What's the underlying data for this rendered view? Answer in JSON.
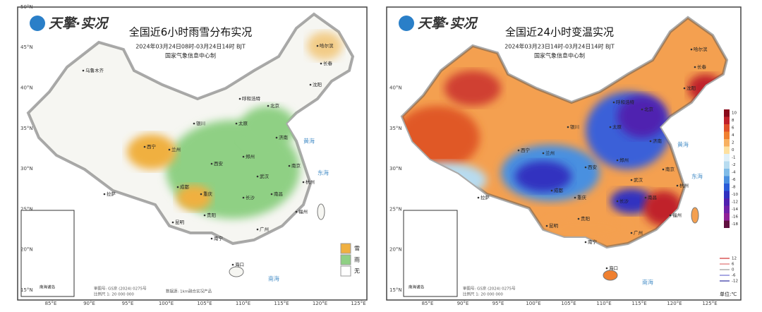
{
  "panels": [
    {
      "logo": "天擎·实况",
      "title": "全国近6小时雨雪分布实况",
      "subtitle": "2024年03月24日08时-03月24日14时 BJT",
      "producer": "国家气象信息中心制",
      "lat_labels": [
        "50°N",
        "45°N",
        "40°N",
        "35°N",
        "30°N",
        "25°N",
        "20°N",
        "15°N"
      ],
      "lon_labels": [
        "85°E",
        "90°E",
        "95°E",
        "100°E",
        "105°E",
        "110°E",
        "115°E",
        "120°E",
        "125°E"
      ],
      "legend": [
        {
          "label": "雪",
          "color": "#f0b040"
        },
        {
          "label": "雨",
          "color": "#8fd084"
        },
        {
          "label": "无",
          "color": "#ffffff"
        }
      ],
      "cities": [
        "乌鲁木齐",
        "拉萨",
        "西宁",
        "兰州",
        "成都",
        "重庆",
        "贵阳",
        "昆明",
        "南宁",
        "西安",
        "银川",
        "太原",
        "呼和浩特",
        "北京",
        "济南",
        "郑州",
        "武汉",
        "长沙",
        "南昌",
        "南京",
        "杭州",
        "福州",
        "广州",
        "海口",
        "哈尔滨",
        "长春",
        "沈阳"
      ],
      "seas": [
        "黄海",
        "东海",
        "南海"
      ],
      "inset_label": "南海诸岛",
      "footer": [
        "审图号: GS京 (2024) 0275号",
        "比例尺 1: 20 000 000"
      ],
      "source": "数据源: 1km融合实况产品"
    },
    {
      "logo": "天擎·实况",
      "title": "全国近24小时变温实况",
      "subtitle": "2024年03月23日14时-03月24日14时 BJT",
      "producer": "国家气象信息中心制",
      "lat_labels": [
        "40°N",
        "35°N",
        "30°N",
        "25°N",
        "20°N",
        "15°N"
      ],
      "lon_labels": [
        "85°E",
        "90°E",
        "95°E",
        "100°E",
        "105°E",
        "110°E",
        "115°E",
        "120°E",
        "125°E"
      ],
      "legend": [
        {
          "value": 10,
          "color": "#8a0a1a"
        },
        {
          "value": 8,
          "color": "#c0202a"
        },
        {
          "value": 6,
          "color": "#e0502a"
        },
        {
          "value": 4,
          "color": "#f08030"
        },
        {
          "value": 2,
          "color": "#f8b060"
        },
        {
          "value": 0,
          "color": "#fde0a0"
        },
        {
          "value": -1,
          "color": "#e0f0f8"
        },
        {
          "value": -2,
          "color": "#b8dcf0"
        },
        {
          "value": -4,
          "color": "#80bce8"
        },
        {
          "value": -6,
          "color": "#4a90e0"
        },
        {
          "value": -8,
          "color": "#2a5cd8"
        },
        {
          "value": -10,
          "color": "#3030c0"
        },
        {
          "value": -12,
          "color": "#5020b0"
        },
        {
          "value": -14,
          "color": "#7020a8"
        },
        {
          "value": -16,
          "color": "#902098"
        },
        {
          "value": -18,
          "color": "#601040"
        }
      ],
      "line_legend": [
        {
          "value": 12,
          "color": "#d03030"
        },
        {
          "value": 6,
          "color": "#e07070"
        },
        {
          "value": 0,
          "color": "#999999"
        },
        {
          "value": -6,
          "color": "#7070d0"
        },
        {
          "value": -12,
          "color": "#3030a0"
        }
      ],
      "unit": "单位:℃",
      "cities": [
        "拉萨",
        "西宁",
        "兰州",
        "成都",
        "重庆",
        "贵阳",
        "昆明",
        "南宁",
        "西安",
        "银川",
        "太原",
        "呼和浩特",
        "北京",
        "济南",
        "郑州",
        "武汉",
        "长沙",
        "南昌",
        "南京",
        "杭州",
        "福州",
        "广州",
        "海口",
        "哈尔滨",
        "长春",
        "沈阳"
      ],
      "seas": [
        "黄海",
        "东海",
        "南海"
      ],
      "inset_label": "南海诸岛",
      "footer": [
        "审图号: GS京 (2024) 0275号",
        "比例尺 1: 20 000 000"
      ]
    }
  ]
}
